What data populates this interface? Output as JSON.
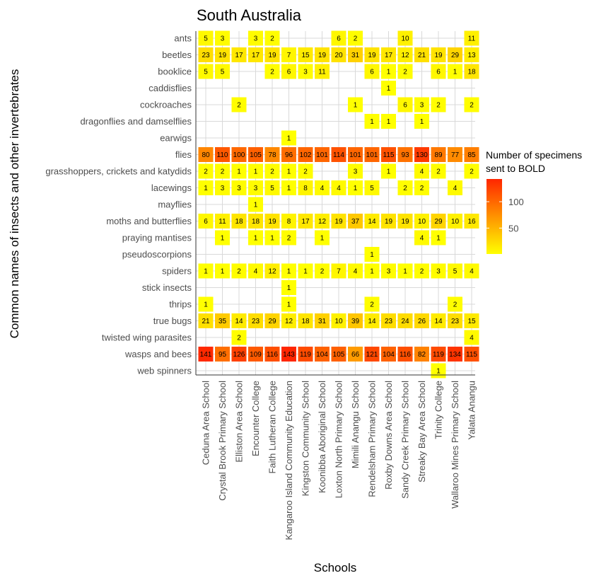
{
  "chart_data": {
    "type": "heatmap",
    "title": "South Australia",
    "xlabel": "Schools",
    "ylabel": "Common names of insects and other invertebrates",
    "legend": {
      "title_lines": [
        "Number of specimens",
        "sent to BOLD"
      ],
      "ticks": [
        50,
        100
      ],
      "range": [
        1,
        143
      ],
      "low_color": "#ffff00",
      "high_color": "#ff2600",
      "placement": "right"
    },
    "grid": true,
    "x_categories": [
      "Ceduna Area School",
      "Crystal Brook Primary School",
      "Elliston Area School",
      "Encounter College",
      "Faith Lutheran College",
      "Kangaroo Island Community Education",
      "Kingston Community School",
      "Koonibba Aboriginal School",
      "Loxton North Primary School",
      "Mimili Anangu School",
      "Rendelsham Primary School",
      "Roxby Downs Area School",
      "Sandy Creek Primary School",
      "Streaky Bay Area School",
      "Trinity College",
      "Wallaroo Mines Primary School",
      "Yalata Anangu"
    ],
    "y_categories": [
      "ants",
      "beetles",
      "booklice",
      "caddisflies",
      "cockroaches",
      "dragonflies and damselflies",
      "earwigs",
      "flies",
      "grasshoppers, crickets and katydids",
      "lacewings",
      "mayflies",
      "moths and butterflies",
      "praying mantises",
      "pseudoscorpions",
      "spiders",
      "stick insects",
      "thrips",
      "true bugs",
      "twisted wing parasites",
      "wasps and bees",
      "web spinners"
    ],
    "values": [
      [
        5,
        3,
        null,
        3,
        2,
        null,
        null,
        null,
        6,
        2,
        null,
        null,
        10,
        null,
        null,
        null,
        11
      ],
      [
        23,
        19,
        17,
        17,
        19,
        7,
        15,
        19,
        20,
        31,
        19,
        17,
        12,
        21,
        19,
        29,
        13
      ],
      [
        5,
        5,
        null,
        null,
        2,
        6,
        3,
        11,
        null,
        null,
        6,
        1,
        2,
        null,
        6,
        1,
        18
      ],
      [
        null,
        null,
        null,
        null,
        null,
        null,
        null,
        null,
        null,
        null,
        null,
        1,
        null,
        null,
        null,
        null,
        null
      ],
      [
        null,
        null,
        2,
        null,
        null,
        null,
        null,
        null,
        null,
        1,
        null,
        null,
        6,
        3,
        2,
        null,
        2
      ],
      [
        null,
        null,
        null,
        null,
        null,
        null,
        null,
        null,
        null,
        null,
        1,
        1,
        null,
        1,
        null,
        null,
        null
      ],
      [
        null,
        null,
        null,
        null,
        null,
        1,
        null,
        null,
        null,
        null,
        null,
        null,
        null,
        null,
        null,
        null,
        null
      ],
      [
        80,
        110,
        100,
        105,
        78,
        96,
        102,
        101,
        114,
        101,
        101,
        115,
        93,
        130,
        89,
        77,
        85
      ],
      [
        2,
        2,
        1,
        1,
        2,
        1,
        2,
        null,
        null,
        3,
        null,
        1,
        null,
        4,
        2,
        null,
        2
      ],
      [
        1,
        3,
        3,
        3,
        5,
        1,
        8,
        4,
        4,
        1,
        5,
        null,
        2,
        2,
        null,
        4,
        null
      ],
      [
        null,
        null,
        null,
        1,
        null,
        null,
        null,
        null,
        null,
        null,
        null,
        null,
        null,
        null,
        null,
        null,
        null
      ],
      [
        6,
        11,
        18,
        18,
        19,
        8,
        17,
        12,
        19,
        37,
        14,
        19,
        19,
        10,
        29,
        10,
        16
      ],
      [
        null,
        1,
        null,
        1,
        1,
        2,
        null,
        1,
        null,
        null,
        null,
        null,
        null,
        4,
        1,
        null,
        null
      ],
      [
        null,
        null,
        null,
        null,
        null,
        null,
        null,
        null,
        null,
        null,
        1,
        null,
        null,
        null,
        null,
        null,
        null
      ],
      [
        1,
        1,
        2,
        4,
        12,
        1,
        1,
        2,
        7,
        4,
        1,
        3,
        1,
        2,
        3,
        5,
        4
      ],
      [
        null,
        null,
        null,
        null,
        null,
        1,
        null,
        null,
        null,
        null,
        null,
        null,
        null,
        null,
        null,
        null,
        null
      ],
      [
        1,
        null,
        null,
        null,
        null,
        1,
        null,
        null,
        null,
        null,
        2,
        null,
        null,
        null,
        null,
        2,
        null
      ],
      [
        21,
        35,
        14,
        23,
        29,
        12,
        18,
        31,
        10,
        39,
        14,
        23,
        24,
        26,
        14,
        23,
        15
      ],
      [
        null,
        null,
        2,
        null,
        null,
        null,
        null,
        null,
        null,
        null,
        null,
        null,
        null,
        null,
        null,
        null,
        4
      ],
      [
        141,
        95,
        126,
        109,
        116,
        143,
        119,
        104,
        105,
        66,
        121,
        104,
        116,
        82,
        119,
        134,
        115
      ],
      [
        null,
        null,
        null,
        null,
        null,
        null,
        null,
        null,
        null,
        null,
        null,
        null,
        null,
        null,
        1,
        null,
        null
      ]
    ]
  }
}
